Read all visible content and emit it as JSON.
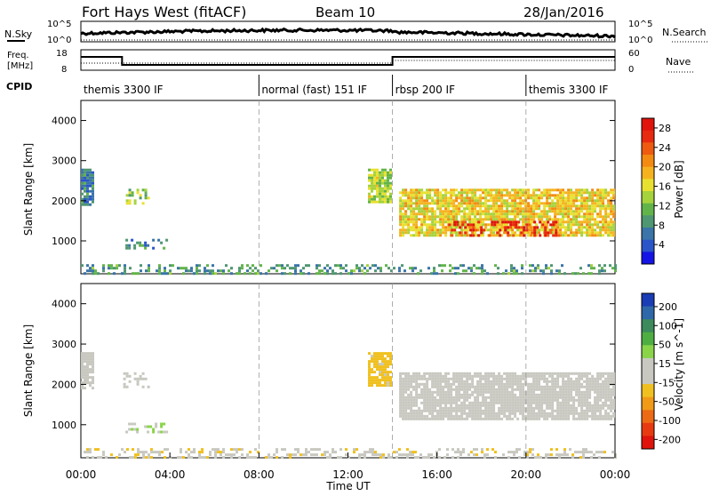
{
  "header": {
    "title": "Fort Hays West (fitACF)",
    "beam": "Beam 10",
    "date": "28/Jan/2016"
  },
  "noise_panel": {
    "left_label": "N.Sky",
    "right_label": "N.Search",
    "left_ticks": [
      "10^5",
      "10^0"
    ],
    "right_ticks": [
      "10^5",
      "10^0"
    ]
  },
  "freq_panel": {
    "left_label_line1": "Freq.",
    "left_label_line2": "[MHz]",
    "right_label": "Nave",
    "left_ticks": [
      "18",
      "8"
    ],
    "right_ticks": [
      "60",
      "0"
    ]
  },
  "cpid": {
    "label": "CPID",
    "segments": [
      {
        "name": "themis 3300 IF",
        "start": 0,
        "end": 8
      },
      {
        "name": "normal (fast) 151 IF",
        "start": 8,
        "end": 14
      },
      {
        "name": "rbsp 200 IF",
        "start": 14,
        "end": 20
      },
      {
        "name": "themis 3300 IF",
        "start": 20,
        "end": 24
      }
    ]
  },
  "time_axis": {
    "label": "Time UT",
    "ticks": [
      "00:00",
      "04:00",
      "08:00",
      "12:00",
      "16:00",
      "20:00",
      "00:00"
    ]
  },
  "chart_data": [
    {
      "type": "heatmap",
      "title": "",
      "ylabel": "Slant Range [km]",
      "xlabel": "",
      "xlim": [
        0,
        24
      ],
      "ylim": [
        180,
        4500
      ],
      "yticks": [
        "1000",
        "2000",
        "3000",
        "4000"
      ],
      "colorbar": {
        "label": "Power [dB]",
        "ticks": [
          "4",
          "8",
          "12",
          "16",
          "20",
          "24",
          "28"
        ],
        "range": [
          0,
          30
        ],
        "colors": [
          "#1414e6",
          "#2a55c8",
          "#3a74a8",
          "#4f9672",
          "#62b44a",
          "#a6d23c",
          "#e8e030",
          "#f5b21e",
          "#f38a12",
          "#ee5a10",
          "#e82a10",
          "#e0140c"
        ]
      },
      "regions": [
        {
          "t0": 0.0,
          "t1": 0.5,
          "r0": 1900,
          "r1": 2800,
          "level": 7
        },
        {
          "t0": 1.9,
          "t1": 3.0,
          "r0": 1950,
          "r1": 2300,
          "level": 13
        },
        {
          "t0": 2.0,
          "t1": 3.9,
          "r0": 800,
          "r1": 1050,
          "level": 7
        },
        {
          "t0": 12.9,
          "t1": 13.9,
          "r0": 2000,
          "r1": 2800,
          "level": 14
        },
        {
          "t0": 14.3,
          "t1": 23.9,
          "r0": 1150,
          "r1": 2300,
          "level": 17
        },
        {
          "t0": 16.5,
          "t1": 21.5,
          "r0": 1150,
          "r1": 1500,
          "level": 27
        },
        {
          "t0": 0.0,
          "t1": 24.0,
          "r0": 180,
          "r1": 420,
          "level": 9
        }
      ]
    },
    {
      "type": "heatmap",
      "title": "",
      "ylabel": "Slant Range [km]",
      "xlabel": "Time UT",
      "xlim": [
        0,
        24
      ],
      "ylim": [
        180,
        4500
      ],
      "yticks": [
        "1000",
        "2000",
        "3000",
        "4000"
      ],
      "colorbar": {
        "label": "Velocity [m s^-1]",
        "ticks": [
          "200",
          "100",
          "50",
          "15",
          "-15",
          "-50",
          "-100",
          "-200"
        ],
        "range": [
          -250,
          250
        ],
        "colors": [
          "#1a3cb4",
          "#2f68a8",
          "#3d8a5c",
          "#4fae42",
          "#8ad44a",
          "#c8c8c0",
          "#c8c8c0",
          "#f0c020",
          "#f09a18",
          "#ec6a14",
          "#e83a10",
          "#e0140c"
        ]
      },
      "regions": [
        {
          "t0": 0.0,
          "t1": 0.5,
          "r0": 1900,
          "r1": 2800,
          "level": 0
        },
        {
          "t0": 1.9,
          "t1": 3.0,
          "r0": 1950,
          "r1": 2300,
          "level": 0
        },
        {
          "t0": 2.0,
          "t1": 3.9,
          "r0": 800,
          "r1": 1050,
          "level": 40
        },
        {
          "t0": 12.9,
          "t1": 13.9,
          "r0": 2000,
          "r1": 2800,
          "level": -60
        },
        {
          "t0": 14.3,
          "t1": 23.9,
          "r0": 1150,
          "r1": 2300,
          "level": 0
        },
        {
          "t0": 0.0,
          "t1": 24.0,
          "r0": 180,
          "r1": 420,
          "level": -30
        }
      ]
    }
  ]
}
